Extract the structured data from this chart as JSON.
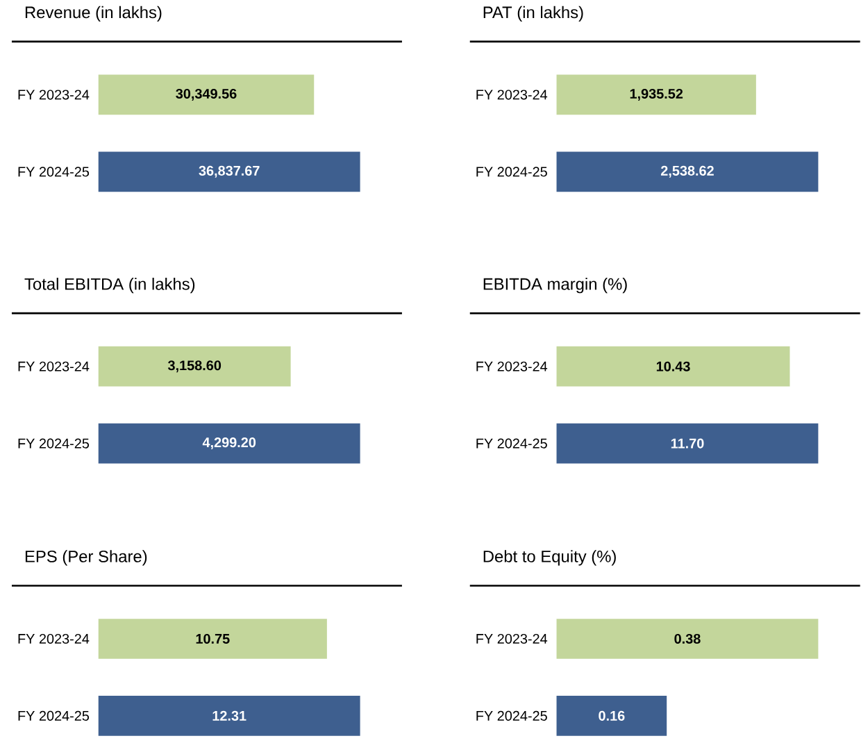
{
  "chart_data": [
    {
      "type": "bar",
      "orientation": "horizontal",
      "title": "Revenue (in lakhs)",
      "categories": [
        "FY 2023-24",
        "FY 2024-25"
      ],
      "values": [
        30349.56,
        36837.67
      ],
      "value_labels": [
        "30,349.56",
        "36,837.67"
      ],
      "colors": [
        "#c3d69b",
        "#3e5f8f"
      ]
    },
    {
      "type": "bar",
      "orientation": "horizontal",
      "title": "PAT (in lakhs)",
      "categories": [
        "FY 2023-24",
        "FY 2024-25"
      ],
      "values": [
        1935.52,
        2538.62
      ],
      "value_labels": [
        "1,935.52",
        "2,538.62"
      ],
      "colors": [
        "#c3d69b",
        "#3e5f8f"
      ]
    },
    {
      "type": "bar",
      "orientation": "horizontal",
      "title": "Total EBITDA (in lakhs)",
      "categories": [
        "FY 2023-24",
        "FY 2024-25"
      ],
      "values": [
        3158.6,
        4299.2
      ],
      "value_labels": [
        "3,158.60",
        "4,299.20"
      ],
      "colors": [
        "#c3d69b",
        "#3e5f8f"
      ]
    },
    {
      "type": "bar",
      "orientation": "horizontal",
      "title": "EBITDA margin (%)",
      "categories": [
        "FY 2023-24",
        "FY 2024-25"
      ],
      "values": [
        10.43,
        11.7
      ],
      "value_labels": [
        "10.43",
        "11.70"
      ],
      "colors": [
        "#c3d69b",
        "#3e5f8f"
      ]
    },
    {
      "type": "bar",
      "orientation": "horizontal",
      "title": "EPS (Per Share)",
      "categories": [
        "FY 2023-24",
        "FY 2024-25"
      ],
      "values": [
        10.75,
        12.31
      ],
      "value_labels": [
        "10.75",
        "12.31"
      ],
      "colors": [
        "#c3d69b",
        "#3e5f8f"
      ]
    },
    {
      "type": "bar",
      "orientation": "horizontal",
      "title": "Debt to Equity (%)",
      "categories": [
        "FY 2023-24",
        "FY 2024-25"
      ],
      "values": [
        0.38,
        0.16
      ],
      "value_labels": [
        "0.38",
        "0.16"
      ],
      "colors": [
        "#c3d69b",
        "#3e5f8f"
      ]
    }
  ]
}
